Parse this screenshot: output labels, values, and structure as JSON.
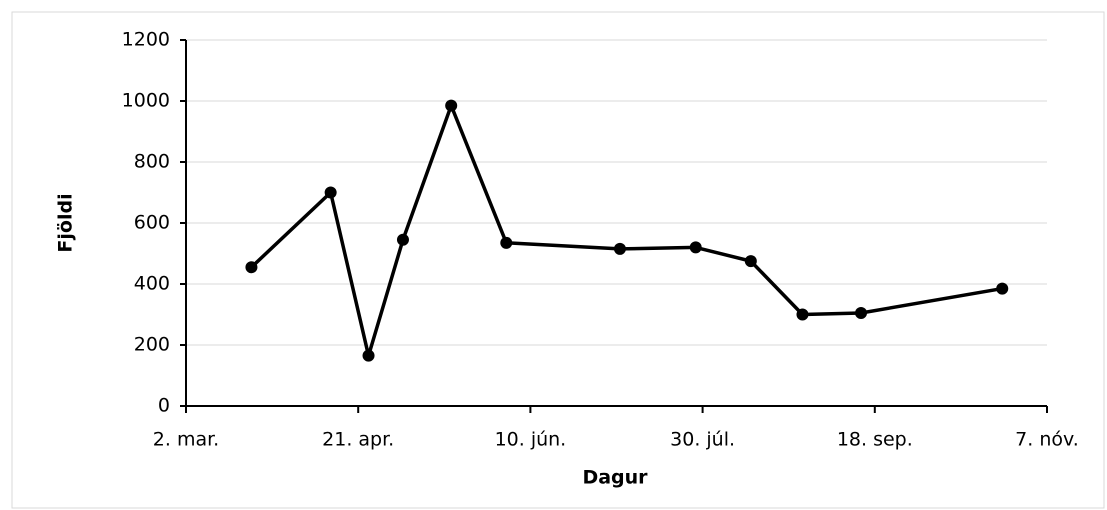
{
  "chart_data": {
    "type": "line",
    "x_label": "Dagur",
    "y_label": "Fjöldi",
    "x": [
      "03-21",
      "04-13",
      "04-24",
      "05-04",
      "05-18",
      "06-03",
      "07-06",
      "07-28",
      "08-13",
      "08-28",
      "09-14",
      "10-25"
    ],
    "series": [
      {
        "name": "Fjöldi",
        "color": "#000000",
        "values": [
          455,
          700,
          165,
          545,
          985,
          535,
          515,
          520,
          475,
          300,
          305,
          385
        ]
      }
    ],
    "xlim": [
      "03-02",
      "11-07"
    ],
    "xticks": [
      {
        "value": "03-02",
        "label": "2. mar."
      },
      {
        "value": "04-21",
        "label": "21. apr."
      },
      {
        "value": "06-10",
        "label": "10. jún."
      },
      {
        "value": "07-30",
        "label": "30. júl."
      },
      {
        "value": "09-18",
        "label": "18. sep."
      },
      {
        "value": "11-07",
        "label": "7. nóv."
      }
    ],
    "ylim": [
      0,
      1200
    ],
    "yticks": [
      0,
      200,
      400,
      600,
      800,
      1000,
      1200
    ],
    "grid": true
  }
}
